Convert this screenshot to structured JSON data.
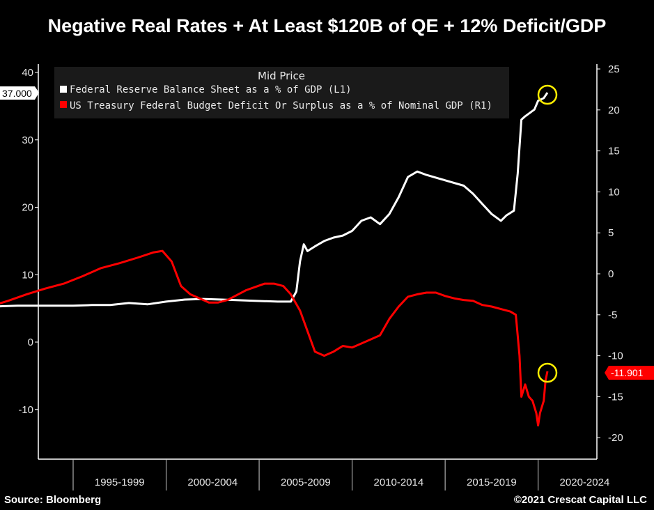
{
  "header": {
    "title": "Negative Real Rates + At Least $120B of QE + 12% Deficit/GDP"
  },
  "footer": {
    "source": "Source: Bloomberg",
    "copyright": "©2021 Crescat Capital LLC"
  },
  "chart_data": {
    "type": "line",
    "title": "Negative Real Rates + At Least $120B of QE + 12% Deficit/GDP",
    "legend": {
      "title": "Mid Price",
      "placement": "top-left"
    },
    "x_ticks": [
      "1995-1999",
      "2000-2004",
      "2005-2009",
      "2010-2014",
      "2015-2019",
      "2020-2024"
    ],
    "x_range": [
      1991.5,
      2024.5
    ],
    "left_axis": {
      "range": [
        -17,
        41
      ],
      "ticks": [
        40,
        30,
        20,
        10,
        0,
        -10
      ]
    },
    "right_axis": {
      "range": [
        -22,
        25
      ],
      "ticks": [
        25,
        20,
        15,
        10,
        5,
        0,
        -5,
        -10,
        -15,
        -20
      ]
    },
    "colors": {
      "fed": "#ffffff",
      "deficit": "#ff0000",
      "highlight": "#ffee00"
    },
    "series": [
      {
        "name": "Federal Reserve Balance Sheet as a % of GDP  (L1)",
        "axis": "left",
        "last_value_label": "37.000",
        "points": [
          [
            1991.5,
            5.2
          ],
          [
            1992,
            5.3
          ],
          [
            1993,
            5.4
          ],
          [
            1994,
            5.4
          ],
          [
            1995,
            5.4
          ],
          [
            1996,
            5.4
          ],
          [
            1997,
            5.5
          ],
          [
            1998,
            5.5
          ],
          [
            1999,
            5.8
          ],
          [
            2000,
            5.6
          ],
          [
            2001,
            6.0
          ],
          [
            2002,
            6.3
          ],
          [
            2003,
            6.4
          ],
          [
            2004,
            6.3
          ],
          [
            2005,
            6.2
          ],
          [
            2006,
            6.1
          ],
          [
            2007,
            6.0
          ],
          [
            2007.7,
            6.0
          ],
          [
            2008.0,
            7.5
          ],
          [
            2008.2,
            12.0
          ],
          [
            2008.4,
            14.5
          ],
          [
            2008.6,
            13.5
          ],
          [
            2009.0,
            14.2
          ],
          [
            2009.5,
            15.0
          ],
          [
            2010.0,
            15.5
          ],
          [
            2010.5,
            15.8
          ],
          [
            2011.0,
            16.5
          ],
          [
            2011.5,
            18.0
          ],
          [
            2012.0,
            18.5
          ],
          [
            2012.5,
            17.5
          ],
          [
            2013.0,
            19.0
          ],
          [
            2013.5,
            21.5
          ],
          [
            2014.0,
            24.5
          ],
          [
            2014.5,
            25.3
          ],
          [
            2015.0,
            24.8
          ],
          [
            2016.0,
            24.0
          ],
          [
            2017.0,
            23.2
          ],
          [
            2017.5,
            22.0
          ],
          [
            2018.0,
            20.5
          ],
          [
            2018.5,
            19.0
          ],
          [
            2019.0,
            18.0
          ],
          [
            2019.3,
            18.8
          ],
          [
            2019.7,
            19.5
          ],
          [
            2019.9,
            25.0
          ],
          [
            2020.1,
            33.0
          ],
          [
            2020.3,
            33.5
          ],
          [
            2020.8,
            34.5
          ],
          [
            2021.0,
            35.8
          ],
          [
            2021.3,
            36.2
          ],
          [
            2021.5,
            37.0
          ]
        ]
      },
      {
        "name": "US Treasury Federal Budget Deficit Or Surplus as a % of Nominal GDP  (R1)",
        "axis": "right",
        "last_value_label": "-11.901",
        "points": [
          [
            1991.5,
            -4.0
          ],
          [
            1992.5,
            -3.3
          ],
          [
            1993.5,
            -2.5
          ],
          [
            1994.5,
            -1.8
          ],
          [
            1995.5,
            -1.2
          ],
          [
            1996.5,
            -0.3
          ],
          [
            1997.5,
            0.7
          ],
          [
            1998.5,
            1.3
          ],
          [
            1999.5,
            2.0
          ],
          [
            2000.3,
            2.6
          ],
          [
            2000.8,
            2.8
          ],
          [
            2001.3,
            1.5
          ],
          [
            2001.8,
            -1.5
          ],
          [
            2002.3,
            -2.5
          ],
          [
            2002.8,
            -3.0
          ],
          [
            2003.3,
            -3.5
          ],
          [
            2003.8,
            -3.5
          ],
          [
            2004.3,
            -3.2
          ],
          [
            2004.8,
            -2.6
          ],
          [
            2005.3,
            -2.0
          ],
          [
            2005.8,
            -1.6
          ],
          [
            2006.3,
            -1.2
          ],
          [
            2006.8,
            -1.2
          ],
          [
            2007.3,
            -1.5
          ],
          [
            2007.7,
            -2.5
          ],
          [
            2008.2,
            -4.5
          ],
          [
            2008.6,
            -7.0
          ],
          [
            2009.0,
            -9.5
          ],
          [
            2009.5,
            -10.0
          ],
          [
            2010.0,
            -9.5
          ],
          [
            2010.5,
            -8.8
          ],
          [
            2011.0,
            -9.0
          ],
          [
            2011.5,
            -8.5
          ],
          [
            2012.0,
            -8.0
          ],
          [
            2012.5,
            -7.5
          ],
          [
            2013.0,
            -5.5
          ],
          [
            2013.5,
            -4.0
          ],
          [
            2014.0,
            -2.8
          ],
          [
            2014.5,
            -2.5
          ],
          [
            2015.0,
            -2.3
          ],
          [
            2015.5,
            -2.3
          ],
          [
            2016.0,
            -2.7
          ],
          [
            2016.5,
            -3.0
          ],
          [
            2017.0,
            -3.2
          ],
          [
            2017.5,
            -3.3
          ],
          [
            2018.0,
            -3.8
          ],
          [
            2018.5,
            -4.0
          ],
          [
            2019.0,
            -4.3
          ],
          [
            2019.5,
            -4.6
          ],
          [
            2019.8,
            -5.0
          ],
          [
            2020.0,
            -10.0
          ],
          [
            2020.1,
            -15.0
          ],
          [
            2020.3,
            -13.5
          ],
          [
            2020.5,
            -15.0
          ],
          [
            2020.7,
            -15.5
          ],
          [
            2020.9,
            -17.0
          ],
          [
            2021.0,
            -18.5
          ],
          [
            2021.1,
            -17.0
          ],
          [
            2021.3,
            -15.5
          ],
          [
            2021.4,
            -13.0
          ],
          [
            2021.5,
            -11.9
          ]
        ]
      }
    ]
  }
}
